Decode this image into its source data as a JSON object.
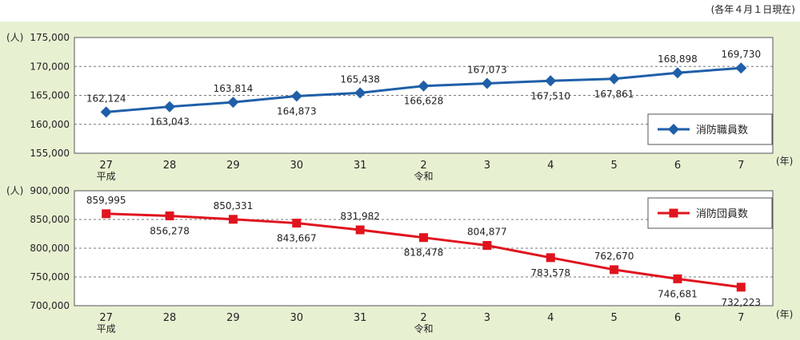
{
  "note": "(各年４月１日現在)",
  "chart_data": [
    {
      "type": "line",
      "unit_label": "(人)",
      "x_unit_label": "(年)",
      "categories": [
        "27",
        "28",
        "29",
        "30",
        "31",
        "2",
        "3",
        "4",
        "5",
        "6",
        "7"
      ],
      "era_labels": [
        {
          "index": 0,
          "label": "平成"
        },
        {
          "index": 5,
          "label": "令和"
        }
      ],
      "series": [
        {
          "name": "消防職員数",
          "color": "#1f5fa8",
          "marker": "diamond",
          "values": [
            162124,
            163043,
            163814,
            164873,
            165438,
            166628,
            167073,
            167510,
            167861,
            168898,
            169730
          ],
          "data_labels": [
            "162,124",
            "163,043",
            "163,814",
            "164,873",
            "165,438",
            "166,628",
            "167,073",
            "167,510",
            "167,861",
            "168,898",
            "169,730"
          ]
        }
      ],
      "ylim": [
        155000,
        175000
      ],
      "yticks": [
        155000,
        160000,
        165000,
        170000,
        175000
      ],
      "ytick_labels": [
        "155,000",
        "160,000",
        "165,000",
        "170,000",
        "175,000"
      ],
      "grid": true,
      "legend": "bottom-right"
    },
    {
      "type": "line",
      "unit_label": "(人)",
      "x_unit_label": "(年)",
      "categories": [
        "27",
        "28",
        "29",
        "30",
        "31",
        "2",
        "3",
        "4",
        "5",
        "6",
        "7"
      ],
      "era_labels": [
        {
          "index": 0,
          "label": "平成"
        },
        {
          "index": 5,
          "label": "令和"
        }
      ],
      "series": [
        {
          "name": "消防団員数",
          "color": "#e0141e",
          "marker": "square",
          "values": [
            859995,
            856278,
            850331,
            843667,
            831982,
            818478,
            804877,
            783578,
            762670,
            746681,
            732223
          ],
          "data_labels": [
            "859,995",
            "856,278",
            "850,331",
            "843,667",
            "831,982",
            "818,478",
            "804,877",
            "783,578",
            "762,670",
            "746,681",
            "732,223"
          ]
        }
      ],
      "ylim": [
        700000,
        900000
      ],
      "yticks": [
        700000,
        750000,
        800000,
        850000,
        900000
      ],
      "ytick_labels": [
        "700,000",
        "750,000",
        "800,000",
        "850,000",
        "900,000"
      ],
      "grid": true,
      "legend": "top-right"
    }
  ]
}
